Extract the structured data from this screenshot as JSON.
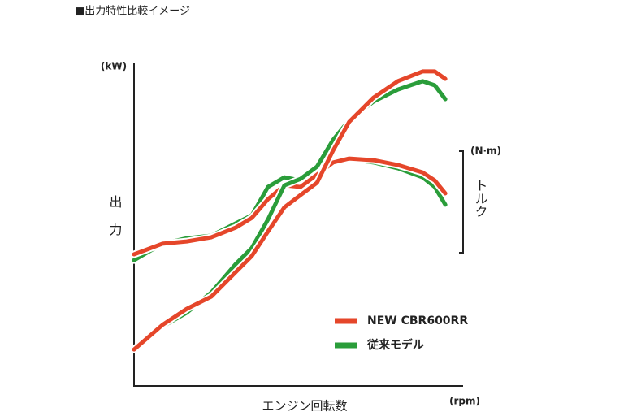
{
  "chart_data": {
    "type": "line",
    "title": "■出力特性比較イメージ",
    "y_label": "出力",
    "y_unit": "(kW)",
    "y2_label": "トルク",
    "y2_unit": "(N·m)",
    "x_label": "エンジン回転数",
    "x_unit": "(rpm)",
    "x": [
      0,
      8.6,
      16,
      23.5,
      30.9,
      35.8,
      40.7,
      45.7,
      50.6,
      55.6,
      60.5,
      65.4,
      72.8,
      80.2,
      87.7,
      91.4,
      94.6
    ],
    "xlim": [
      0,
      100
    ],
    "ylim": [
      0,
      100
    ],
    "series": [
      {
        "name": "従来モデル",
        "color": "#2a9d3a",
        "values": [
          11.3,
          18.4,
          22.7,
          29,
          37.8,
          42.8,
          51.6,
          62.2,
          64.2,
          68,
          76.3,
          82.4,
          88.2,
          91.9,
          94.5,
          93.2,
          88.9
        ],
        "torque": [
          39,
          44.1,
          45.8,
          46.6,
          50.4,
          52.9,
          61.7,
          64.7,
          63.7,
          66.8,
          69.3,
          70.3,
          69.3,
          67.5,
          64.7,
          61.7,
          56.2
        ]
      },
      {
        "name": "NEW CBR600RR",
        "color": "#e5462a",
        "values": [
          11.3,
          18.9,
          23.9,
          27.7,
          35.3,
          40.3,
          47.9,
          55.4,
          59.2,
          63,
          73,
          81.9,
          89.4,
          94.5,
          97.5,
          97.5,
          95.2
        ],
        "torque": [
          40.8,
          44.1,
          44.8,
          46.1,
          49.1,
          52.1,
          57.9,
          62.2,
          61.7,
          65.5,
          69.3,
          70.5,
          70,
          68.5,
          66.2,
          63.7,
          59.7
        ]
      }
    ]
  }
}
